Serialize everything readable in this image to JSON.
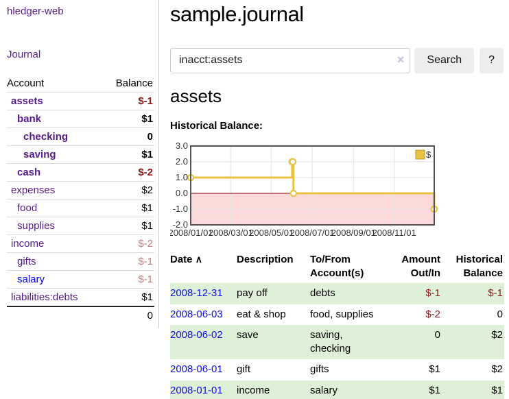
{
  "sidebar": {
    "app_title": "hledger-web",
    "nav_journal": "Journal",
    "accounts_table": {
      "headers": {
        "account": "Account",
        "balance": "Balance"
      },
      "rows": [
        {
          "account": "assets",
          "indent": 0,
          "bold": true,
          "balance": "$-1",
          "balance_class": "neg-strong"
        },
        {
          "account": "bank",
          "indent": 1,
          "bold": true,
          "balance": "$1",
          "balance_class": ""
        },
        {
          "account": "checking",
          "indent": 2,
          "bold": true,
          "balance": "0",
          "balance_class": ""
        },
        {
          "account": "saving",
          "indent": 2,
          "bold": true,
          "balance": "$1",
          "balance_class": ""
        },
        {
          "account": "cash",
          "indent": 1,
          "bold": true,
          "balance": "$-2",
          "balance_class": "neg-strong"
        },
        {
          "account": "expenses",
          "indent": 0,
          "bold": false,
          "balance": "$2",
          "balance_class": ""
        },
        {
          "account": "food",
          "indent": 1,
          "bold": false,
          "balance": "$1",
          "balance_class": ""
        },
        {
          "account": "supplies",
          "indent": 1,
          "bold": false,
          "balance": "$1",
          "balance_class": ""
        },
        {
          "account": "income",
          "indent": 0,
          "bold": false,
          "balance": "$-2",
          "balance_class": "neg-soft"
        },
        {
          "account": "gifts",
          "indent": 1,
          "bold": false,
          "balance": "$-1",
          "balance_class": "neg-soft"
        },
        {
          "account": "salary",
          "indent": 1,
          "bold": false,
          "balance": "$-1",
          "balance_class": "neg-soft",
          "link_style": "unvisited"
        },
        {
          "account": "liabilities:debts",
          "indent": 0,
          "bold": false,
          "balance": "$1",
          "balance_class": ""
        }
      ],
      "total": "0"
    }
  },
  "main": {
    "title": "sample.journal",
    "search": {
      "value": "inacct:assets",
      "clear_label": "×",
      "button_label": "Search",
      "help_label": "?"
    },
    "account_heading": "assets",
    "chart_heading": "Historical Balance:"
  },
  "chart_data": {
    "type": "line",
    "step": true,
    "title": "Historical Balance:",
    "legend": "$",
    "legend_position": "top-right",
    "grid": true,
    "x_range": [
      "2008-01-01",
      "2008-12-31"
    ],
    "ylim": [
      -2,
      3
    ],
    "y_ticks": [
      "3.0",
      "2.0",
      "1.0",
      "0.0",
      "-1.0",
      "-2.0"
    ],
    "x_ticks": [
      "2008/01/01",
      "2008/03/01",
      "2008/05/01",
      "2008/07/01",
      "2008/09/01",
      "2008/11/01"
    ],
    "series": [
      {
        "name": "$",
        "points": [
          {
            "x": "2008-01-01",
            "y": 1
          },
          {
            "x": "2008-06-01",
            "y": 2
          },
          {
            "x": "2008-06-02",
            "y": 2
          },
          {
            "x": "2008-06-03",
            "y": 0
          },
          {
            "x": "2008-12-31",
            "y": -1
          }
        ]
      }
    ],
    "colors": {
      "line": "#e8c344",
      "marker_fill": "#ffffff",
      "negative_region": "#fcdada",
      "zero_line": "#8b0000",
      "grid": "#e2e2e2",
      "border": "#545454",
      "legend_square": "#e8c344",
      "legend_square_border": "#b89b2e"
    }
  },
  "register_table": {
    "headers": {
      "date": "Date",
      "description": "Description",
      "accounts": "To/From Account(s)",
      "amount": "Amount Out/In",
      "balance": "Historical Balance"
    },
    "sort_icon": "∧",
    "rows": [
      {
        "date": "2008-12-31",
        "description": "pay off",
        "accounts": "debts",
        "amount": "$-1",
        "amount_neg": true,
        "balance": "$-1",
        "balance_neg": true,
        "stripe": true
      },
      {
        "date": "2008-06-03",
        "description": "eat & shop",
        "accounts": "food, supplies",
        "amount": "$-2",
        "amount_neg": true,
        "balance": "0",
        "balance_neg": false,
        "stripe": false
      },
      {
        "date": "2008-06-02",
        "description": "save",
        "accounts": "saving, checking",
        "amount": "0",
        "amount_neg": false,
        "balance": "$2",
        "balance_neg": false,
        "stripe": true
      },
      {
        "date": "2008-06-01",
        "description": "gift",
        "accounts": "gifts",
        "amount": "$1",
        "amount_neg": false,
        "balance": "$2",
        "balance_neg": false,
        "stripe": false
      },
      {
        "date": "2008-01-01",
        "description": "income",
        "accounts": "salary",
        "amount": "$1",
        "amount_neg": false,
        "balance": "$1",
        "balance_neg": false,
        "stripe": true
      }
    ]
  }
}
